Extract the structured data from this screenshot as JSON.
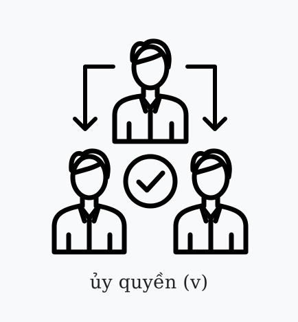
{
  "colors": {
    "background": "#f8f9fb",
    "stroke": "#000000",
    "caption": "#222222"
  },
  "illustration": {
    "description_icons": [
      "person-top-icon",
      "person-left-icon",
      "person-right-icon",
      "checkmark-circle-icon",
      "arrow-down-left-icon",
      "arrow-down-right-icon"
    ]
  },
  "caption": {
    "text": "ủy quyền (v)"
  }
}
